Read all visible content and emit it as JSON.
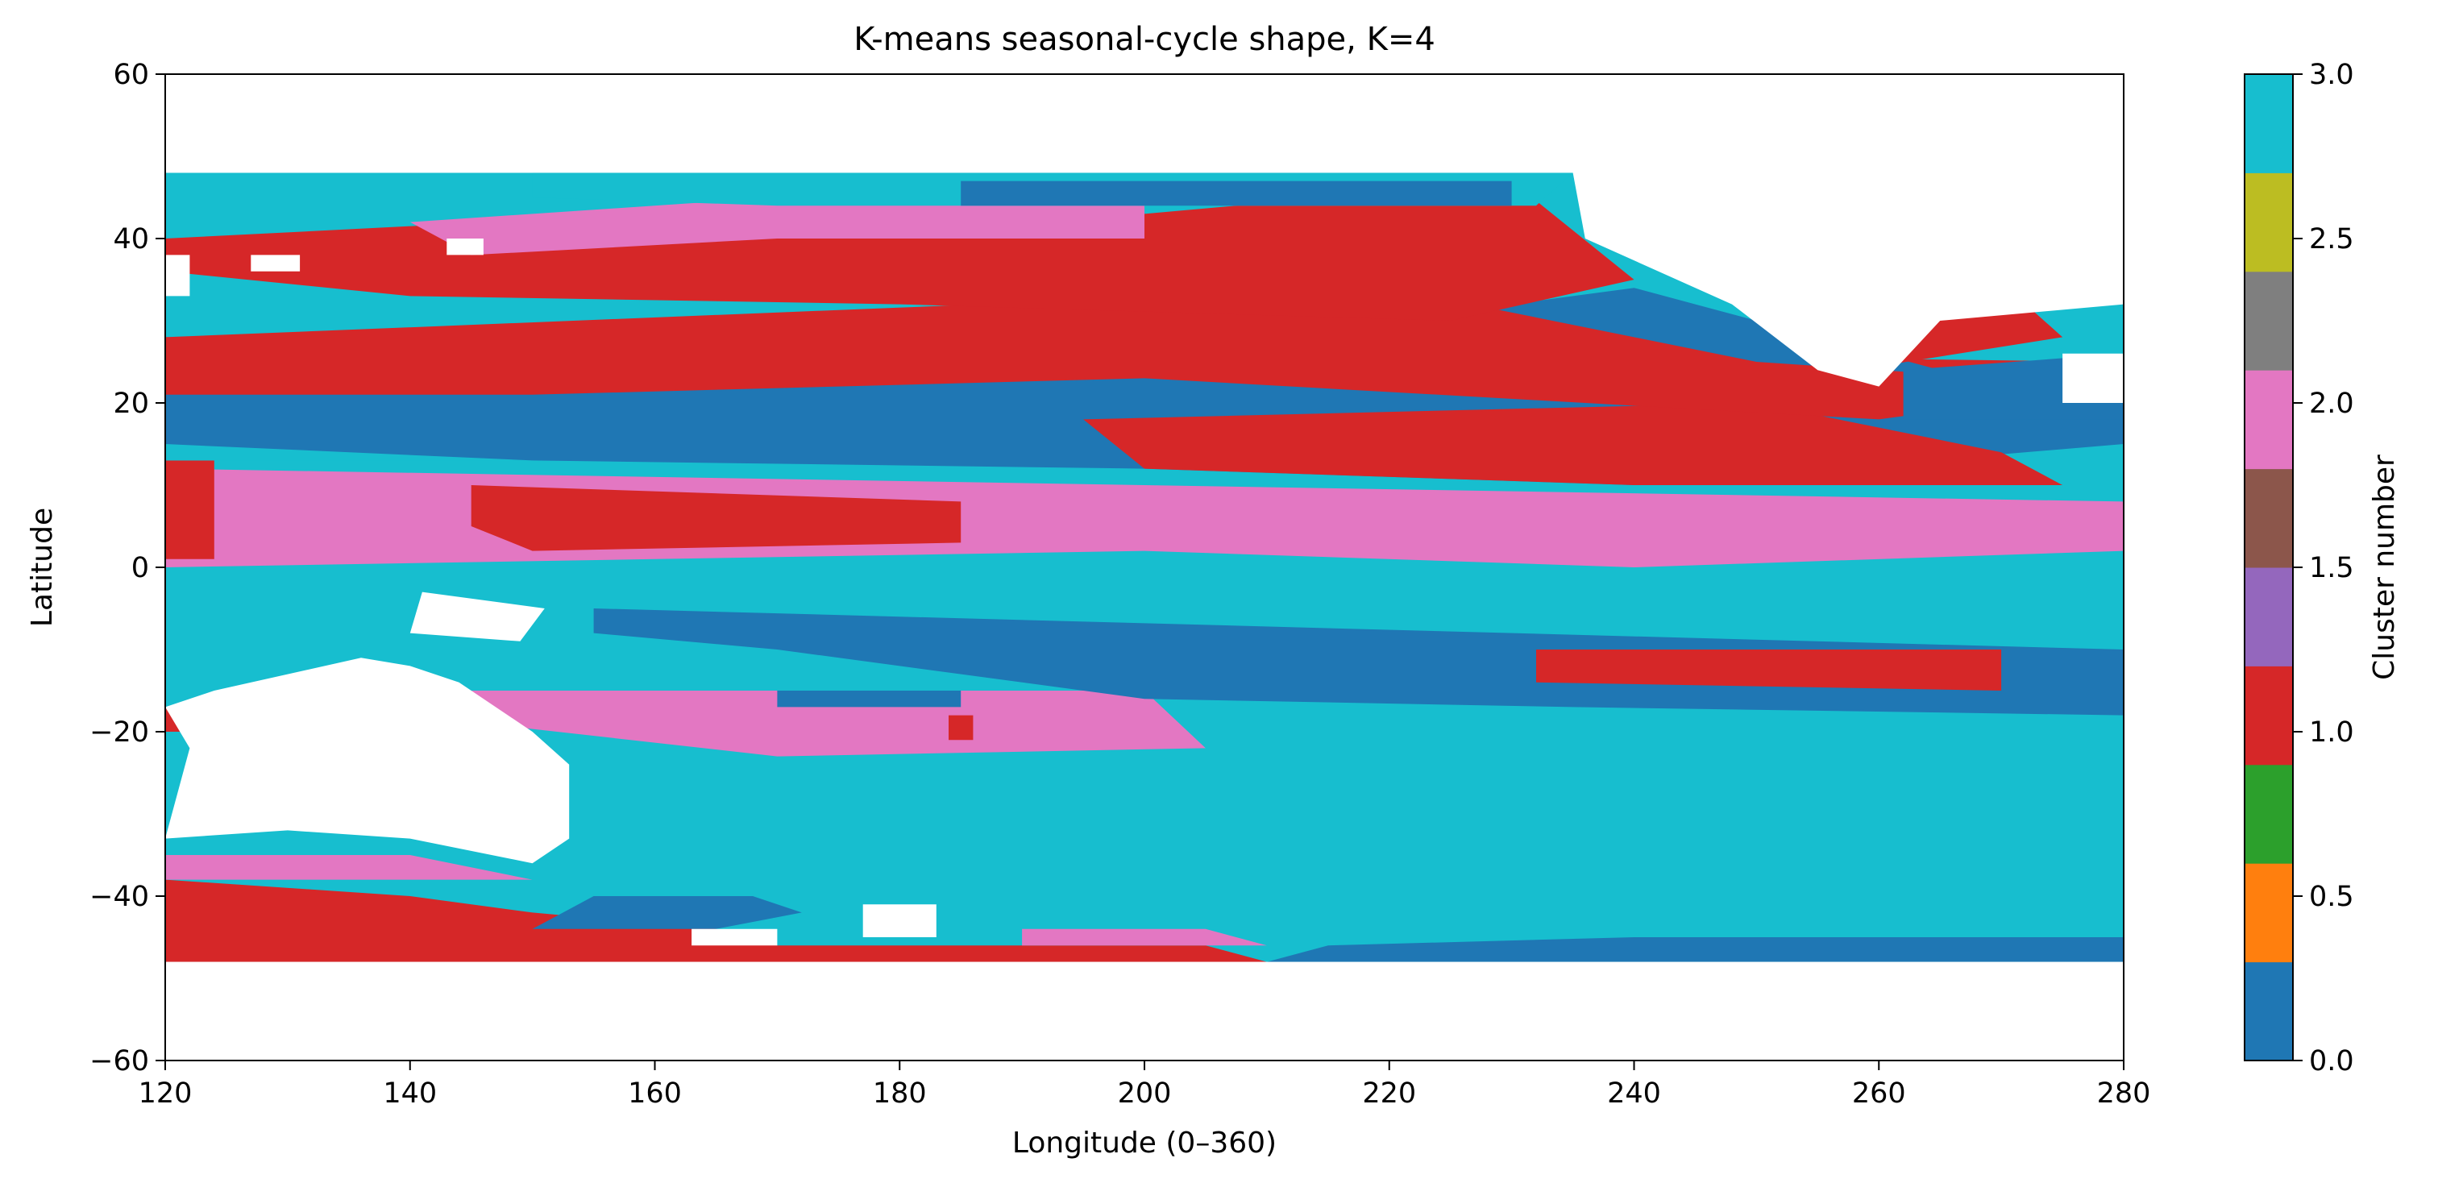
{
  "chart_data": {
    "type": "heatmap",
    "title": "K-means seasonal-cycle shape, K=4",
    "xlabel": "Longitude (0–360)",
    "ylabel": "Latitude",
    "xlim": [
      120,
      280
    ],
    "ylim": [
      -60,
      60
    ],
    "x_ticks": [
      120,
      140,
      160,
      180,
      200,
      220,
      240,
      260,
      280
    ],
    "x_tick_labels": [
      "120",
      "140",
      "160",
      "180",
      "200",
      "220",
      "240",
      "260",
      "280"
    ],
    "y_ticks": [
      -60,
      -40,
      -20,
      0,
      20,
      40,
      60
    ],
    "y_tick_labels": [
      "−60",
      "−40",
      "−20",
      "0",
      "20",
      "40",
      "60"
    ],
    "grid": false,
    "data_lat_range": [
      -48,
      48
    ],
    "colorbar": {
      "label": "Cluster number",
      "range": [
        0,
        3
      ],
      "ticks": [
        0.0,
        0.5,
        1.0,
        1.5,
        2.0,
        2.5,
        3.0
      ],
      "tick_labels": [
        "0.0",
        "0.5",
        "1.0",
        "1.5",
        "2.0",
        "2.5",
        "3.0"
      ],
      "colors": [
        "#1f77b4",
        "#ff7f0e",
        "#2ca02c",
        "#d62728",
        "#9467bd",
        "#8c564b",
        "#e377c2",
        "#7f7f7f",
        "#bcbd22",
        "#17becf"
      ]
    },
    "clusters": [
      {
        "value": 0,
        "color": "#1f77b4"
      },
      {
        "value": 1,
        "color": "#d62728"
      },
      {
        "value": 2,
        "color": "#e377c2"
      },
      {
        "value": 3,
        "color": "#17becf"
      }
    ],
    "regions": [
      {
        "cluster": 3,
        "polygon": [
          [
            120,
            -48
          ],
          [
            280,
            -48
          ],
          [
            280,
            48
          ],
          [
            120,
            48
          ]
        ]
      },
      {
        "cluster": 1,
        "polygon": [
          [
            120,
            -48
          ],
          [
            210,
            -48
          ],
          [
            205,
            -46
          ],
          [
            170,
            -46
          ],
          [
            165,
            -44
          ],
          [
            150,
            -42
          ],
          [
            140,
            -40
          ],
          [
            120,
            -38
          ]
        ]
      },
      {
        "cluster": 0,
        "polygon": [
          [
            150,
            -44
          ],
          [
            165,
            -44
          ],
          [
            172,
            -42
          ],
          [
            168,
            -40
          ],
          [
            155,
            -40
          ]
        ]
      },
      {
        "cluster": 0,
        "polygon": [
          [
            210,
            -48
          ],
          [
            280,
            -48
          ],
          [
            280,
            -45
          ],
          [
            240,
            -45
          ],
          [
            215,
            -46
          ]
        ]
      },
      {
        "cluster": 2,
        "polygon": [
          [
            190,
            -46
          ],
          [
            210,
            -46
          ],
          [
            205,
            -44
          ],
          [
            190,
            -44
          ]
        ]
      },
      {
        "cluster": 2,
        "polygon": [
          [
            120,
            -38
          ],
          [
            150,
            -38
          ],
          [
            140,
            -35
          ],
          [
            120,
            -35
          ]
        ]
      },
      {
        "cluster": 1,
        "polygon": [
          [
            120,
            -20
          ],
          [
            122,
            -20
          ],
          [
            122,
            -17
          ],
          [
            120,
            -17
          ]
        ]
      },
      {
        "cluster": 1,
        "polygon": [
          [
            120,
            15
          ],
          [
            280,
            15
          ],
          [
            280,
            25
          ],
          [
            120,
            28
          ]
        ]
      },
      {
        "cluster": 2,
        "polygon": [
          [
            126,
            -15
          ],
          [
            200,
            -15
          ],
          [
            205,
            -22
          ],
          [
            170,
            -23
          ],
          [
            140,
            -18
          ],
          [
            126,
            -18
          ]
        ]
      },
      {
        "cluster": 0,
        "polygon": [
          [
            155,
            -5
          ],
          [
            280,
            -10
          ],
          [
            280,
            -18
          ],
          [
            235,
            -17
          ],
          [
            200,
            -16
          ],
          [
            170,
            -10
          ],
          [
            155,
            -8
          ]
        ]
      },
      {
        "cluster": 1,
        "polygon": [
          [
            232,
            -10
          ],
          [
            270,
            -10
          ],
          [
            270,
            -15
          ],
          [
            232,
            -14
          ]
        ]
      },
      {
        "cluster": 2,
        "polygon": [
          [
            120,
            12
          ],
          [
            280,
            8
          ],
          [
            280,
            2
          ],
          [
            240,
            0
          ],
          [
            200,
            2
          ],
          [
            160,
            1
          ],
          [
            120,
            0
          ]
        ]
      },
      {
        "cluster": 1,
        "polygon": [
          [
            145,
            10
          ],
          [
            185,
            8
          ],
          [
            185,
            3
          ],
          [
            150,
            2
          ],
          [
            145,
            5
          ]
        ]
      },
      {
        "cluster": 1,
        "polygon": [
          [
            120,
            13
          ],
          [
            124,
            13
          ],
          [
            124,
            1
          ],
          [
            120,
            1
          ]
        ]
      },
      {
        "cluster": 3,
        "polygon": [
          [
            120,
            21
          ],
          [
            210,
            23
          ],
          [
            210,
            16
          ],
          [
            150,
            13
          ],
          [
            120,
            13
          ]
        ]
      },
      {
        "cluster": 0,
        "polygon": [
          [
            120,
            23
          ],
          [
            200,
            26
          ],
          [
            240,
            34
          ],
          [
            265,
            24
          ],
          [
            280,
            20
          ],
          [
            280,
            15
          ],
          [
            240,
            10
          ],
          [
            200,
            12
          ],
          [
            150,
            13
          ],
          [
            120,
            15
          ]
        ]
      },
      {
        "cluster": 1,
        "polygon": [
          [
            195,
            18
          ],
          [
            250,
            20
          ],
          [
            270,
            14
          ],
          [
            275,
            10
          ],
          [
            240,
            10
          ],
          [
            200,
            12
          ]
        ]
      },
      {
        "cluster": 1,
        "polygon": [
          [
            120,
            28
          ],
          [
            220,
            34
          ],
          [
            250,
            25
          ],
          [
            280,
            22
          ],
          [
            260,
            18
          ],
          [
            200,
            23
          ],
          [
            150,
            21
          ],
          [
            120,
            21
          ]
        ]
      },
      {
        "cluster": 1,
        "polygon": [
          [
            120,
            40
          ],
          [
            160,
            43
          ],
          [
            200,
            43
          ],
          [
            230,
            47
          ],
          [
            240,
            35
          ],
          [
            225,
            30
          ],
          [
            180,
            32
          ],
          [
            140,
            33
          ],
          [
            120,
            36
          ]
        ]
      },
      {
        "cluster": 2,
        "polygon": [
          [
            140,
            42
          ],
          [
            170,
            45
          ],
          [
            200,
            44
          ],
          [
            200,
            40
          ],
          [
            170,
            40
          ],
          [
            145,
            38
          ]
        ]
      },
      {
        "cluster": 3,
        "polygon": [
          [
            150,
            48
          ],
          [
            235,
            48
          ],
          [
            232,
            44
          ],
          [
            200,
            44
          ],
          [
            170,
            44
          ],
          [
            150,
            45
          ]
        ]
      },
      {
        "cluster": 0,
        "polygon": [
          [
            185,
            47
          ],
          [
            230,
            47
          ],
          [
            230,
            44
          ],
          [
            185,
            44
          ]
        ]
      },
      {
        "cluster": 1,
        "polygon": [
          [
            255,
            32
          ],
          [
            272,
            32
          ],
          [
            275,
            28
          ],
          [
            258,
            24
          ],
          [
            255,
            26
          ]
        ]
      },
      {
        "cluster": 0,
        "polygon": [
          [
            262,
            24
          ],
          [
            280,
            26
          ],
          [
            280,
            18
          ],
          [
            262,
            18
          ]
        ]
      },
      {
        "cluster": 3,
        "polygon": [
          [
            270,
            46
          ],
          [
            280,
            46
          ],
          [
            280,
            42
          ],
          [
            270,
            42
          ]
        ]
      },
      {
        "cluster": 0,
        "polygon": [
          [
            170,
            -15
          ],
          [
            185,
            -15
          ],
          [
            185,
            -17
          ],
          [
            170,
            -17
          ]
        ]
      },
      {
        "cluster": 1,
        "polygon": [
          [
            184,
            -18
          ],
          [
            186,
            -18
          ],
          [
            186,
            -21
          ],
          [
            184,
            -21
          ]
        ]
      }
    ],
    "masks": [
      {
        "polygon": [
          [
            120,
            48
          ],
          [
            235,
            48
          ],
          [
            236,
            40
          ],
          [
            248,
            32
          ],
          [
            255,
            24
          ],
          [
            260,
            22
          ],
          [
            265,
            30
          ],
          [
            280,
            32
          ],
          [
            280,
            60
          ],
          [
            120,
            60
          ]
        ]
      },
      {
        "polygon": [
          [
            265,
            48
          ],
          [
            270,
            48
          ],
          [
            270,
            46
          ],
          [
            280,
            46
          ],
          [
            280,
            40
          ],
          [
            272,
            40
          ],
          [
            268,
            44
          ]
        ]
      },
      {
        "polygon": [
          [
            120,
            -48
          ],
          [
            280,
            -48
          ],
          [
            280,
            -60
          ],
          [
            120,
            -60
          ]
        ]
      },
      {
        "polygon": [
          [
            120,
            -33
          ],
          [
            130,
            -32
          ],
          [
            140,
            -33
          ],
          [
            150,
            -36
          ],
          [
            153,
            -33
          ],
          [
            153,
            -24
          ],
          [
            150,
            -20
          ],
          [
            144,
            -14
          ],
          [
            140,
            -12
          ],
          [
            136,
            -11
          ],
          [
            130,
            -13
          ],
          [
            124,
            -15
          ],
          [
            120,
            -17
          ],
          [
            122,
            -22
          ],
          [
            120,
            -33
          ]
        ]
      },
      {
        "polygon": [
          [
            141,
            -3
          ],
          [
            151,
            -5
          ],
          [
            149,
            -9
          ],
          [
            140,
            -8
          ]
        ]
      },
      {
        "polygon": [
          [
            120,
            38
          ],
          [
            122,
            38
          ],
          [
            122,
            33
          ],
          [
            120,
            33
          ]
        ]
      },
      {
        "polygon": [
          [
            127,
            38
          ],
          [
            131,
            38
          ],
          [
            131,
            36
          ],
          [
            127,
            36
          ]
        ]
      },
      {
        "polygon": [
          [
            143,
            40
          ],
          [
            146,
            40
          ],
          [
            146,
            38
          ],
          [
            143,
            38
          ]
        ]
      },
      {
        "polygon": [
          [
            275,
            26
          ],
          [
            280,
            26
          ],
          [
            280,
            20
          ],
          [
            275,
            20
          ]
        ]
      },
      {
        "polygon": [
          [
            177,
            -41
          ],
          [
            183,
            -41
          ],
          [
            183,
            -45
          ],
          [
            177,
            -45
          ]
        ]
      },
      {
        "polygon": [
          [
            163,
            -44
          ],
          [
            170,
            -44
          ],
          [
            170,
            -46
          ],
          [
            163,
            -46
          ]
        ]
      }
    ]
  }
}
